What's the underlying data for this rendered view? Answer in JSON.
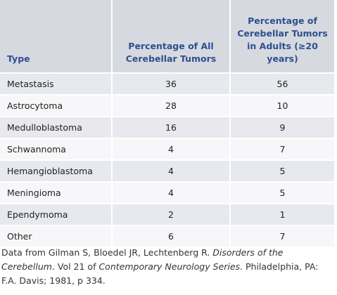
{
  "table": {
    "header": [
      "Type",
      "Percentage of All Cerebellar Tumors",
      "Percentage of Cerebellar Tumors in Adults (≥20 years)"
    ],
    "rows": [
      [
        "Metastasis",
        36,
        56
      ],
      [
        "Astrocytoma",
        28,
        10
      ],
      [
        "Medulloblastoma",
        16,
        9
      ],
      [
        "Schwannoma",
        4,
        7
      ],
      [
        "Hemangioblastoma",
        4,
        5
      ],
      [
        "Meningioma",
        4,
        5
      ],
      [
        "Ependymoma",
        2,
        1
      ],
      [
        "Other",
        6,
        7
      ]
    ]
  },
  "note": [
    "Data from Gilman S, Bloedel JR, Lechtenberg R. ",
    "Disorders of the Cerebellum",
    ". Vol 21 of ",
    "Contemporary Neurology Series",
    ". Philadelphia, PA: F.A. Davis; 1981, p 334."
  ]
}
